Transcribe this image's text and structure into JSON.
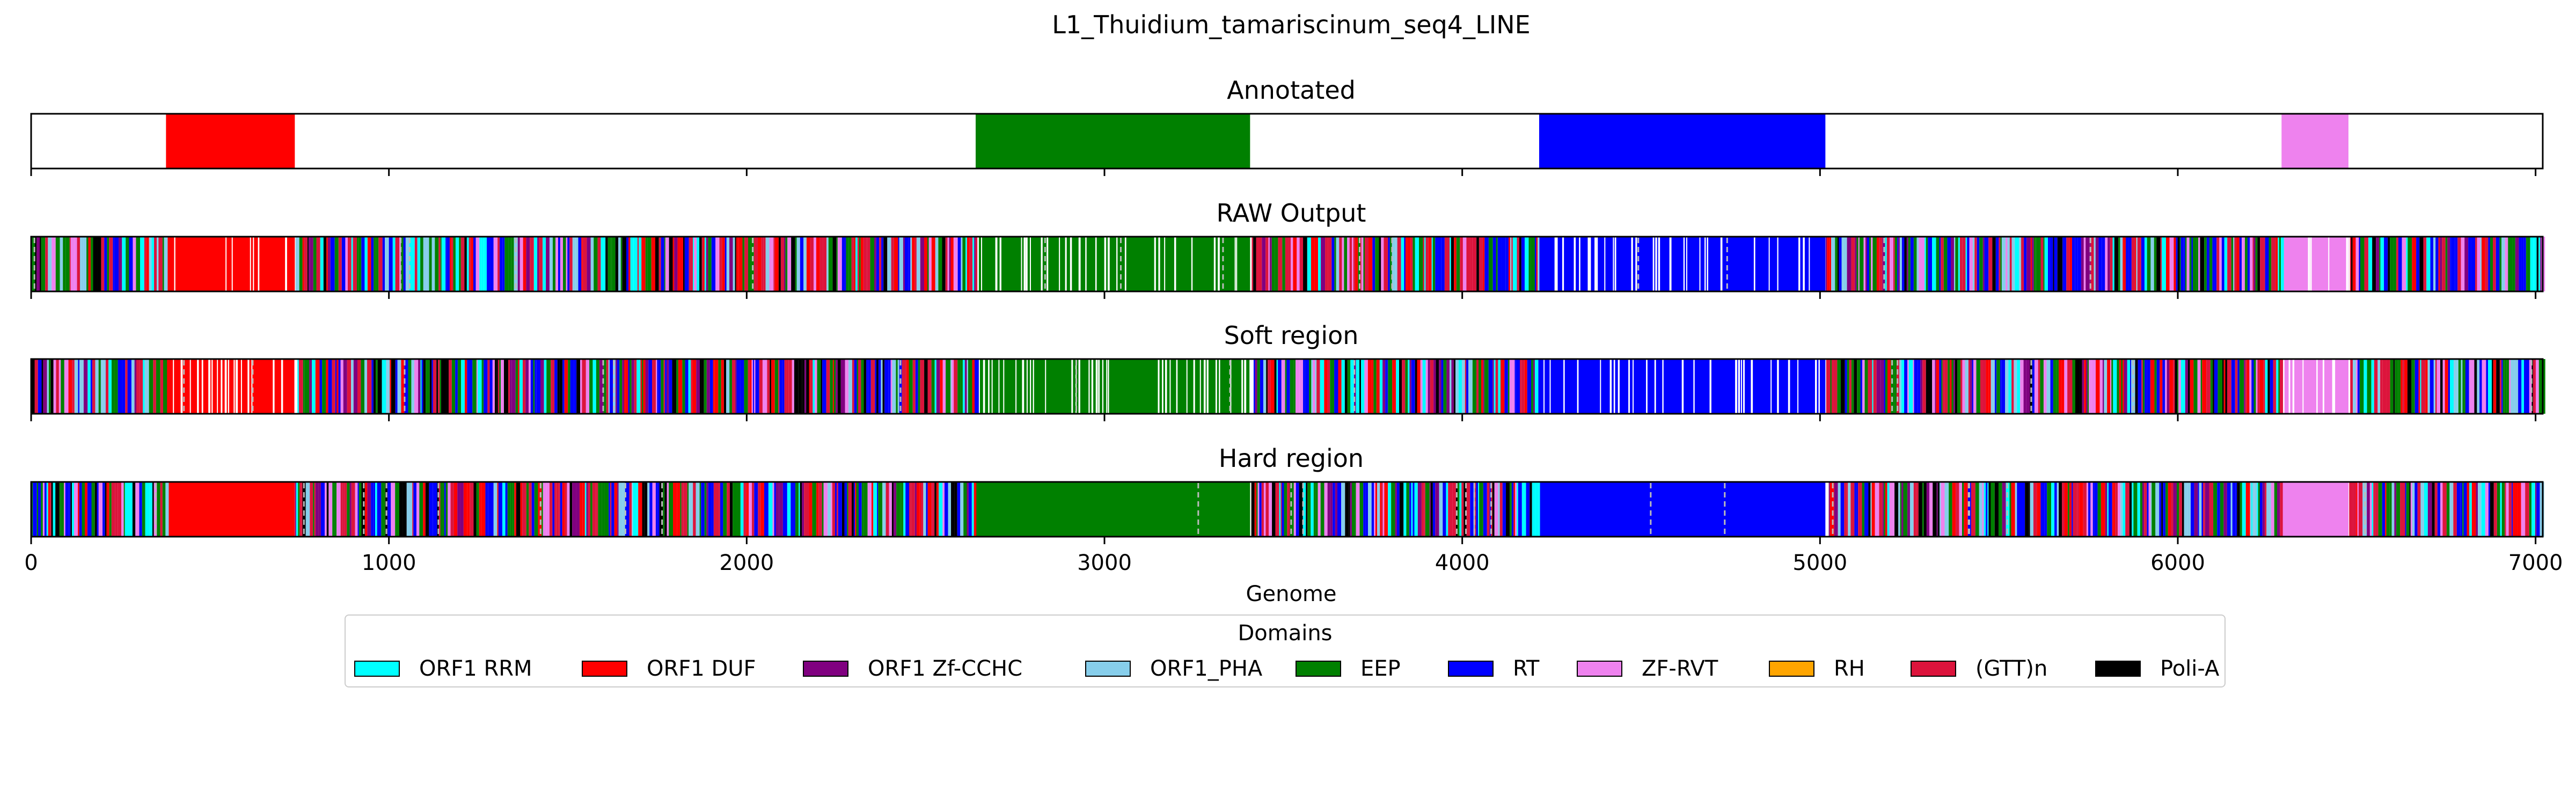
{
  "chart_data": {
    "type": "track",
    "title": "L1_Thuidium_tamariscinum_seq4_LINE",
    "xlabel": "Genome",
    "xlim": [
      0,
      7020
    ],
    "xticks": [
      0,
      1000,
      2000,
      3000,
      4000,
      5000,
      6000,
      7000
    ],
    "xtick_labels": [
      "0",
      "1000",
      "2000",
      "3000",
      "4000",
      "5000",
      "6000",
      "7000"
    ],
    "legend": {
      "title": "Domains",
      "placement": "lower-center",
      "entries": [
        {
          "label": "ORF1 RRM",
          "color": "#00ffff"
        },
        {
          "label": "ORF1 DUF",
          "color": "#ff0000"
        },
        {
          "label": "ORF1 Zf-CCHC",
          "color": "#800080"
        },
        {
          "label": "ORF1_PHA",
          "color": "#87ceeb"
        },
        {
          "label": "EEP",
          "color": "#008000"
        },
        {
          "label": "RT",
          "color": "#0000ff"
        },
        {
          "label": "ZF-RVT",
          "color": "#ee82ee"
        },
        {
          "label": "RH",
          "color": "#ffa500"
        },
        {
          "label": "(GTT)n",
          "color": "#dc143c"
        },
        {
          "label": "Poli-A",
          "color": "#000000"
        }
      ]
    },
    "panels": [
      {
        "title": "Annotated",
        "style": "annotated",
        "segments": [
          {
            "domain": "ORF1 DUF",
            "start": 377,
            "end": 737
          },
          {
            "domain": "EEP",
            "start": 2640,
            "end": 3407
          },
          {
            "domain": "RT",
            "start": 4215,
            "end": 5015
          },
          {
            "domain": "ZF-RVT",
            "start": 6290,
            "end": 6477
          }
        ]
      },
      {
        "title": "RAW Output",
        "style": "raw",
        "segments": [
          {
            "domain": "ORF1 DUF",
            "start": 377,
            "end": 737
          },
          {
            "domain": "EEP",
            "start": 2640,
            "end": 3407
          },
          {
            "domain": "RT",
            "start": 4215,
            "end": 5015
          },
          {
            "domain": "ZF-RVT",
            "start": 6290,
            "end": 6477
          }
        ]
      },
      {
        "title": "Soft region",
        "style": "raw",
        "segments": [
          {
            "domain": "ORF1 DUF",
            "start": 377,
            "end": 737
          },
          {
            "domain": "EEP",
            "start": 2640,
            "end": 3407
          },
          {
            "domain": "RT",
            "start": 4215,
            "end": 5015
          },
          {
            "domain": "ZF-RVT",
            "start": 6290,
            "end": 6477
          }
        ]
      },
      {
        "title": "Hard region",
        "style": "hard",
        "segments": [
          {
            "domain": "ORF1 DUF",
            "start": 377,
            "end": 737
          },
          {
            "domain": "EEP",
            "start": 2640,
            "end": 3407
          },
          {
            "domain": "RT",
            "start": 4215,
            "end": 5015
          },
          {
            "domain": "ZF-RVT",
            "start": 6290,
            "end": 6477
          }
        ]
      }
    ]
  }
}
